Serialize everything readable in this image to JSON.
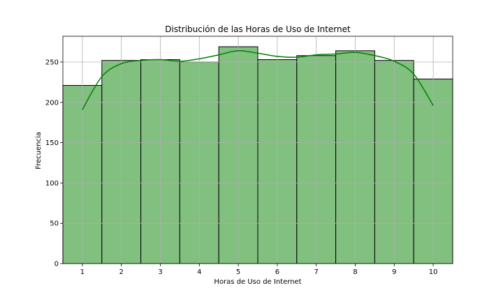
{
  "chart_data": {
    "type": "bar",
    "title": "Distribución de las Horas de Uso de Internet",
    "xlabel": "Horas de Uso de Internet",
    "ylabel": "Frecuencia",
    "categories": [
      "1",
      "2",
      "3",
      "4",
      "5",
      "6",
      "7",
      "8",
      "9",
      "10"
    ],
    "values": [
      221,
      252,
      253,
      250,
      269,
      253,
      258,
      264,
      252,
      229
    ],
    "xlim": [
      0.5,
      10.5
    ],
    "ylim": [
      0,
      282
    ],
    "yticks": [
      0,
      50,
      100,
      150,
      200,
      250
    ],
    "grid": true,
    "bar_color": "#81c07f",
    "bar_edge_color": "#000000",
    "kde": {
      "color": "#008000",
      "x": [
        1,
        1.5,
        2,
        2.5,
        3,
        3.5,
        4,
        4.5,
        5,
        5.5,
        6,
        6.5,
        7,
        7.5,
        8,
        8.5,
        9,
        9.5,
        10
      ],
      "y": [
        191,
        232,
        248,
        252,
        253,
        251,
        254,
        259,
        264,
        261,
        257,
        256,
        259,
        260,
        262,
        258,
        251,
        235,
        196
      ]
    }
  }
}
